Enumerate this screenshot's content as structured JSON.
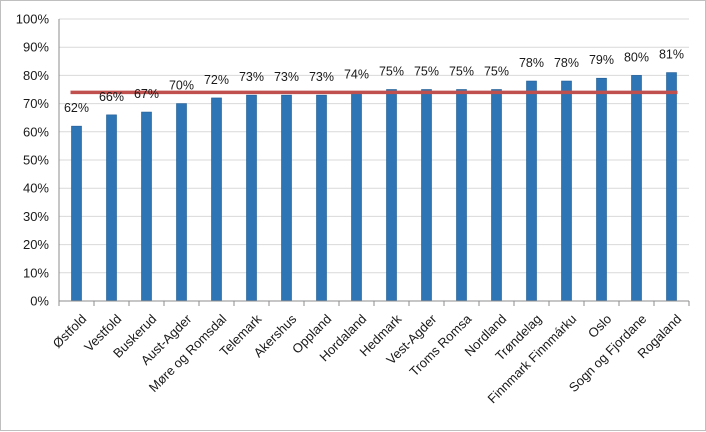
{
  "chart_data": {
    "type": "bar",
    "categories": [
      "Østfold",
      "Vestfold",
      "Buskerud",
      "Aust-Agder",
      "Møre og Romsdal",
      "Telemark",
      "Akershus",
      "Oppland",
      "Hordaland",
      "Hedmark",
      "Vest-Agder",
      "Troms Romsa",
      "Nordland",
      "Trøndelag",
      "Finnmark Finnmárku",
      "Oslo",
      "Sogn og Fjordane",
      "Rogaland"
    ],
    "series": [
      {
        "values": [
          62,
          66,
          67,
          70,
          72,
          73,
          73,
          73,
          74,
          75,
          75,
          75,
          75,
          78,
          78,
          79,
          80,
          81
        ]
      }
    ],
    "data_labels": [
      "62%",
      "66%",
      "67%",
      "70%",
      "72%",
      "73%",
      "73%",
      "73%",
      "74%",
      "75%",
      "75%",
      "75%",
      "75%",
      "78%",
      "78%",
      "79%",
      "80%",
      "81%"
    ],
    "reference_line": {
      "value": 74
    },
    "ylim": [
      0,
      100
    ],
    "yticks": [
      "0%",
      "10%",
      "20%",
      "30%",
      "40%",
      "50%",
      "60%",
      "70%",
      "80%",
      "90%",
      "100%"
    ],
    "grid": true,
    "legend": "none",
    "title": "",
    "xlabel": "",
    "ylabel": "",
    "colors": {
      "bar": "#2e75b6",
      "bar_edge": "#1f5a91",
      "reference_line": "#c0504d",
      "grid": "#d9d9d9",
      "axis": "#8c8c8c"
    }
  }
}
